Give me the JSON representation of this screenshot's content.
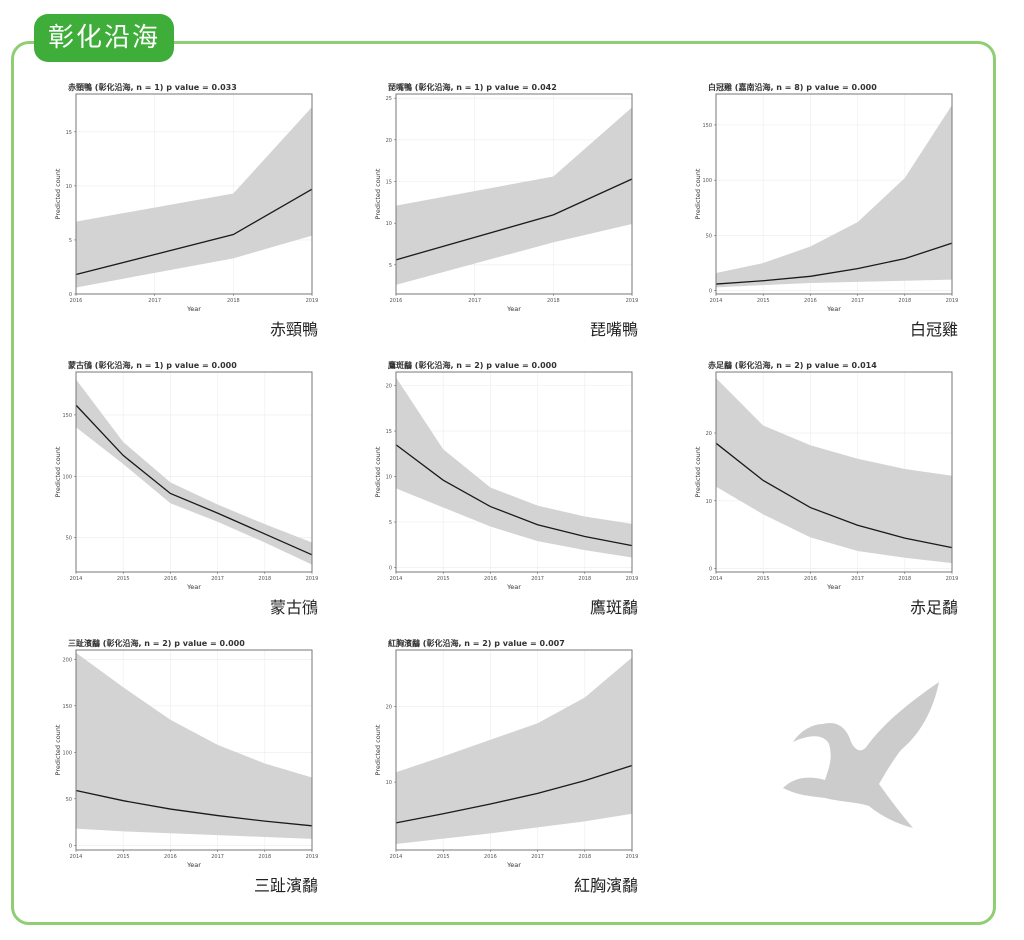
{
  "region_tab": "彰化沿海",
  "colors": {
    "band": "#d3d3d3",
    "line": "#1a1a1a",
    "grid": "#ececec",
    "tab": "#3fad3a",
    "frame": "#8fce73",
    "bird": "#cccccc"
  },
  "panels": [
    {
      "title": "赤頸鴨 (彰化沿海, n = 1) p value = 0.033",
      "species": "赤頸鴨"
    },
    {
      "title": "琵嘴鴨 (彰化沿海, n = 1) p value = 0.042",
      "species": "琵嘴鴨"
    },
    {
      "title": "白冠雞 (嘉南沿海, n = 8) p value = 0.000",
      "species": "白冠雞"
    },
    {
      "title": "蒙古鴴 (彰化沿海, n = 1) p value = 0.000",
      "species": "蒙古鴴"
    },
    {
      "title": "鷹斑鷸 (彰化沿海, n = 2) p value = 0.000",
      "species": "鷹斑鷸"
    },
    {
      "title": "赤足鷸 (彰化沿海, n = 2) p value = 0.014",
      "species": "赤足鷸"
    },
    {
      "title": "三趾濱鷸 (彰化沿海, n = 2) p value = 0.000",
      "species": "三趾濱鷸"
    },
    {
      "title": "紅胸濱鷸 (彰化沿海, n = 2) p value = 0.007",
      "species": "紅胸濱鷸"
    }
  ],
  "chart_data": [
    {
      "type": "line",
      "title": "赤頸鴨 (彰化沿海, n = 1) p value = 0.033",
      "xlabel": "Year",
      "ylabel": "Predicted count",
      "x": [
        2016,
        2018,
        2019
      ],
      "y": [
        1.8,
        5.5,
        9.7
      ],
      "lower": [
        0.6,
        3.3,
        5.4
      ],
      "upper": [
        6.7,
        9.3,
        17.3
      ],
      "xlim": [
        2016,
        2019
      ],
      "ylim": [
        0,
        18.5
      ],
      "xticks": [
        2016,
        2017,
        2018,
        2019
      ],
      "yticks": [
        0,
        5,
        10,
        15
      ],
      "grid": true
    },
    {
      "type": "line",
      "title": "琵嘴鴨 (彰化沿海, n = 1) p value = 0.042",
      "xlabel": "Year",
      "ylabel": "Predicted count",
      "x": [
        2016,
        2018,
        2019
      ],
      "y": [
        5.6,
        11.0,
        15.3
      ],
      "lower": [
        2.6,
        7.7,
        9.9
      ],
      "upper": [
        12.1,
        15.6,
        23.9
      ],
      "xlim": [
        2016,
        2019
      ],
      "ylim": [
        1.5,
        25.5
      ],
      "xticks": [
        2016,
        2017,
        2018,
        2019
      ],
      "yticks": [
        5,
        10,
        15,
        20,
        25
      ],
      "grid": true
    },
    {
      "type": "line",
      "title": "白冠雞 (嘉南沿海, n = 8) p value = 0.000",
      "xlabel": "Year",
      "ylabel": "Predicted count",
      "x": [
        2014,
        2015,
        2016,
        2017,
        2018,
        2019
      ],
      "y": [
        6,
        9,
        13,
        20,
        29,
        43
      ],
      "lower": [
        3,
        5,
        7,
        8,
        9,
        10
      ],
      "upper": [
        16,
        25,
        40,
        62,
        102,
        168
      ],
      "xlim": [
        2014,
        2019
      ],
      "ylim": [
        -3,
        178
      ],
      "xticks": [
        2014,
        2015,
        2016,
        2017,
        2018,
        2019
      ],
      "yticks": [
        0,
        50,
        100,
        150
      ],
      "grid": true
    },
    {
      "type": "line",
      "title": "蒙古鴴 (彰化沿海, n = 1) p value = 0.000",
      "xlabel": "Year",
      "ylabel": "Predicted count",
      "x": [
        2014,
        2015,
        2016,
        2017,
        2018,
        2019
      ],
      "y": [
        158,
        117,
        86,
        70,
        53,
        36
      ],
      "lower": [
        140,
        110,
        78,
        63,
        46,
        28
      ],
      "upper": [
        179,
        128,
        95,
        77,
        61,
        46
      ],
      "xlim": [
        2014,
        2019
      ],
      "ylim": [
        22,
        185
      ],
      "xticks": [
        2014,
        2015,
        2016,
        2017,
        2018,
        2019
      ],
      "yticks": [
        50,
        100,
        150
      ],
      "grid": true
    },
    {
      "type": "line",
      "title": "鷹斑鷸 (彰化沿海, n = 2) p value = 0.000",
      "xlabel": "Year",
      "ylabel": "Predicted count",
      "x": [
        2014,
        2015,
        2016,
        2017,
        2018,
        2019
      ],
      "y": [
        13.5,
        9.6,
        6.7,
        4.7,
        3.4,
        2.4
      ],
      "lower": [
        8.7,
        6.6,
        4.5,
        2.9,
        1.9,
        1.1
      ],
      "upper": [
        20.9,
        13.0,
        8.8,
        6.8,
        5.6,
        4.8
      ],
      "xlim": [
        2014,
        2019
      ],
      "ylim": [
        -0.5,
        21.5
      ],
      "xticks": [
        2014,
        2015,
        2016,
        2017,
        2018,
        2019
      ],
      "yticks": [
        0,
        5,
        10,
        15,
        20
      ],
      "grid": true
    },
    {
      "type": "line",
      "title": "赤足鷸 (彰化沿海, n = 2) p value = 0.014",
      "xlabel": "Year",
      "ylabel": "Predicted count",
      "x": [
        2014,
        2015,
        2016,
        2017,
        2018,
        2019
      ],
      "y": [
        18.5,
        13.0,
        9.0,
        6.4,
        4.5,
        3.1
      ],
      "lower": [
        12.1,
        8.0,
        4.6,
        2.6,
        1.6,
        0.8
      ],
      "upper": [
        28.1,
        21.1,
        18.2,
        16.2,
        14.7,
        13.7
      ],
      "xlim": [
        2014,
        2019
      ],
      "ylim": [
        -0.5,
        29.0
      ],
      "xticks": [
        2014,
        2015,
        2016,
        2017,
        2018,
        2019
      ],
      "yticks": [
        0,
        10,
        20
      ],
      "grid": true
    },
    {
      "type": "line",
      "title": "三趾濱鷸 (彰化沿海, n = 2) p value = 0.000",
      "xlabel": "Year",
      "ylabel": "Predicted count",
      "x": [
        2014,
        2015,
        2016,
        2017,
        2018,
        2019
      ],
      "y": [
        59,
        48,
        39,
        32,
        26,
        21
      ],
      "lower": [
        18,
        15,
        13,
        11,
        9,
        7
      ],
      "upper": [
        207,
        170,
        135,
        108,
        88,
        73
      ],
      "xlim": [
        2014,
        2019
      ],
      "ylim": [
        -5,
        210
      ],
      "xticks": [
        2014,
        2015,
        2016,
        2017,
        2018,
        2019
      ],
      "yticks": [
        0,
        50,
        100,
        150,
        200
      ],
      "grid": true
    },
    {
      "type": "line",
      "title": "紅胸濱鷸 (彰化沿海, n = 2) p value = 0.007",
      "xlabel": "Year",
      "ylabel": "Predicted count",
      "x": [
        2014,
        2015,
        2016,
        2017,
        2018,
        2019
      ],
      "y": [
        4.6,
        5.8,
        7.1,
        8.5,
        10.2,
        12.2
      ],
      "lower": [
        1.8,
        2.5,
        3.2,
        4.0,
        4.8,
        5.8
      ],
      "upper": [
        11.3,
        13.4,
        15.6,
        17.8,
        21.2,
        26.5
      ],
      "xlim": [
        2014,
        2019
      ],
      "ylim": [
        1.0,
        27.5
      ],
      "xticks": [
        2014,
        2015,
        2016,
        2017,
        2018,
        2019
      ],
      "yticks": [
        10,
        20
      ],
      "grid": true
    }
  ]
}
